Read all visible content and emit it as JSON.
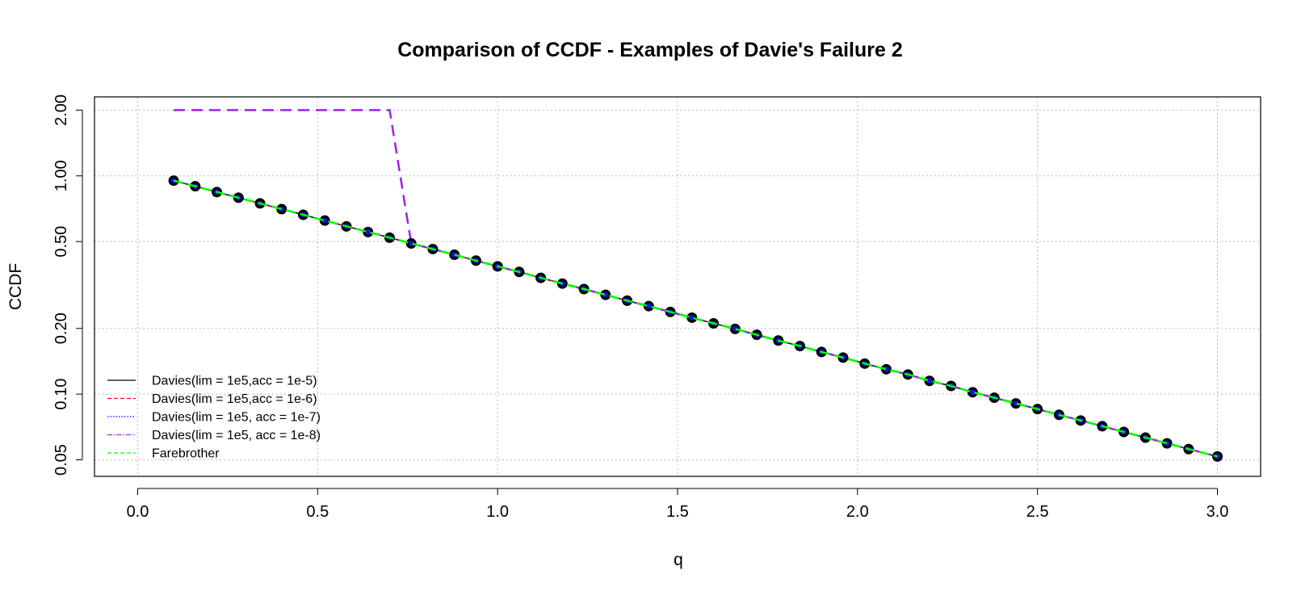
{
  "chart_data": {
    "type": "line",
    "title": "Comparison of CCDF  - Examples of Davie's Failure 2",
    "xlabel": "q",
    "ylabel": "CCDF",
    "xlim": [
      0.0,
      3.0
    ],
    "ylim": [
      0.042,
      2.3
    ],
    "y_scale": "log",
    "grid": true,
    "legend_position": "bottom-left",
    "x_ticks": [
      "0.0",
      "0.5",
      "1.0",
      "1.5",
      "2.0",
      "2.5",
      "3.0"
    ],
    "y_ticks": [
      "0.05",
      "0.10",
      "0.20",
      "0.50",
      "1.00",
      "2.00"
    ],
    "x": [
      0.1,
      0.16,
      0.22,
      0.28,
      0.34,
      0.4,
      0.46,
      0.52,
      0.58,
      0.64,
      0.7,
      0.76,
      0.82,
      0.88,
      0.94,
      1.0,
      1.06,
      1.12,
      1.18,
      1.24,
      1.3,
      1.36,
      1.42,
      1.48,
      1.54,
      1.6,
      1.66,
      1.72,
      1.78,
      1.84,
      1.9,
      1.96,
      2.02,
      2.08,
      2.14,
      2.2,
      2.26,
      2.32,
      2.38,
      2.44,
      2.5,
      2.56,
      2.62,
      2.68,
      2.74,
      2.8,
      2.86,
      2.92,
      3.0
    ],
    "series": [
      {
        "name": "Davies(lim = 1e5,acc = 1e-5)",
        "color": "#000000",
        "dash": "solid",
        "width": 1.5,
        "markers": true,
        "values": [
          0.951,
          0.896,
          0.843,
          0.794,
          0.748,
          0.704,
          0.663,
          0.624,
          0.587,
          0.553,
          0.521,
          0.49,
          0.462,
          0.435,
          0.409,
          0.385,
          0.363,
          0.341,
          0.321,
          0.303,
          0.285,
          0.268,
          0.253,
          0.238,
          0.224,
          0.211,
          0.199,
          0.187,
          0.176,
          0.166,
          0.156,
          0.147,
          0.138,
          0.13,
          0.123,
          0.115,
          0.109,
          0.102,
          0.0963,
          0.0907,
          0.0854,
          0.0804,
          0.0757,
          0.0713,
          0.0671,
          0.0632,
          0.0595,
          0.056,
          0.0518
        ]
      },
      {
        "name": "Davies(lim = 1e5,acc = 1e-6)",
        "color": "#ff0000",
        "dash": "6,4",
        "width": 1.5,
        "markers": false,
        "values": [
          0.951,
          0.896,
          0.843,
          0.794,
          0.748,
          0.704,
          0.663,
          0.624,
          0.587,
          0.553,
          0.521,
          0.49,
          0.462,
          0.435,
          0.409,
          0.385,
          0.363,
          0.341,
          0.321,
          0.303,
          0.285,
          0.268,
          0.253,
          0.238,
          0.224,
          0.211,
          0.199,
          0.187,
          0.176,
          0.166,
          0.156,
          0.147,
          0.138,
          0.13,
          0.123,
          0.115,
          0.109,
          0.102,
          0.0963,
          0.0907,
          0.0854,
          0.0804,
          0.0757,
          0.0713,
          0.0671,
          0.0632,
          0.0595,
          0.056,
          0.0518
        ]
      },
      {
        "name": "Davies(lim = 1e5, acc = 1e-7)",
        "color": "#0000ff",
        "dash": "2,3",
        "width": 1.5,
        "markers": true,
        "values": [
          0.951,
          0.896,
          0.843,
          0.794,
          0.748,
          0.704,
          0.663,
          0.624,
          0.587,
          0.553,
          0.521,
          0.49,
          0.462,
          0.435,
          0.409,
          0.385,
          0.363,
          0.341,
          0.321,
          0.303,
          0.285,
          0.268,
          0.253,
          0.238,
          0.224,
          0.211,
          0.199,
          0.187,
          0.176,
          0.166,
          0.156,
          0.147,
          0.138,
          0.13,
          0.123,
          0.115,
          0.109,
          0.102,
          0.0963,
          0.0907,
          0.0854,
          0.0804,
          0.0757,
          0.0713,
          0.0671,
          0.0632,
          0.0595,
          0.056,
          0.0518
        ]
      },
      {
        "name": "Davies(lim = 1e5, acc = 1e-8)",
        "color": "#a020f0",
        "dash": "14,8",
        "width": 2.5,
        "markers": false,
        "values": [
          2.0,
          2.0,
          2.0,
          2.0,
          2.0,
          2.0,
          2.0,
          2.0,
          2.0,
          2.0,
          2.0,
          0.49,
          0.462,
          0.435,
          0.409,
          0.385,
          0.363,
          0.341,
          0.321,
          0.303,
          0.285,
          0.268,
          0.253,
          0.238,
          0.224,
          0.211,
          0.199,
          0.187,
          0.176,
          0.166,
          0.156,
          0.147,
          0.138,
          0.13,
          0.123,
          0.115,
          0.109,
          0.102,
          0.0963,
          0.0907,
          0.0854,
          0.0804,
          0.0757,
          0.0713,
          0.0671,
          0.0632,
          0.0595,
          0.056,
          0.0518
        ]
      },
      {
        "name": "Farebrother",
        "color": "#00ff00",
        "dash": "12,6",
        "width": 2.5,
        "markers": false,
        "values": [
          0.951,
          0.896,
          0.843,
          0.794,
          0.748,
          0.704,
          0.663,
          0.624,
          0.587,
          0.553,
          0.521,
          0.49,
          0.462,
          0.435,
          0.409,
          0.385,
          0.363,
          0.341,
          0.321,
          0.303,
          0.285,
          0.268,
          0.253,
          0.238,
          0.224,
          0.211,
          0.199,
          0.187,
          0.176,
          0.166,
          0.156,
          0.147,
          0.138,
          0.13,
          0.123,
          0.115,
          0.109,
          0.102,
          0.0963,
          0.0907,
          0.0854,
          0.0804,
          0.0757,
          0.0713,
          0.0671,
          0.0632,
          0.0595,
          0.056,
          0.0518
        ]
      }
    ]
  }
}
